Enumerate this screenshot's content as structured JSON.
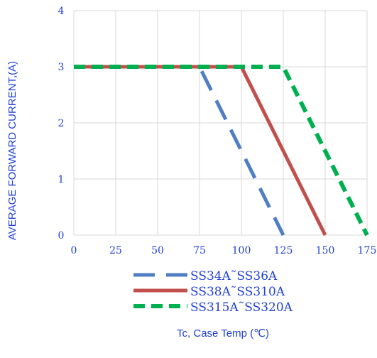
{
  "chart_data": {
    "type": "line",
    "title": "",
    "xlabel": "Tc, Case Temp (℃)",
    "ylabel": "AVERAGE FORWARD CURRENT,(A)",
    "xlim": [
      0,
      175
    ],
    "ylim": [
      0,
      4
    ],
    "x_ticks": [
      "0",
      "25",
      "50",
      "75",
      "100",
      "125",
      "150",
      "175"
    ],
    "y_ticks": [
      "0",
      "1",
      "2",
      "3",
      "4"
    ],
    "grid": true,
    "legend_position": "bottom",
    "series": [
      {
        "name": "SS34A˜SS36A",
        "color": "#4f7ec3",
        "dash": "long-dash",
        "points": [
          [
            0,
            3
          ],
          [
            75,
            3
          ],
          [
            125,
            0
          ]
        ]
      },
      {
        "name": "SS38A˜SS310A",
        "color": "#c0504d",
        "dash": "solid",
        "points": [
          [
            0,
            3
          ],
          [
            100,
            3
          ],
          [
            150,
            0
          ]
        ]
      },
      {
        "name": "SS315A˜SS320A",
        "color": "#00b050",
        "dash": "dash",
        "points": [
          [
            0,
            3
          ],
          [
            125,
            3
          ],
          [
            175,
            0
          ]
        ]
      }
    ]
  }
}
